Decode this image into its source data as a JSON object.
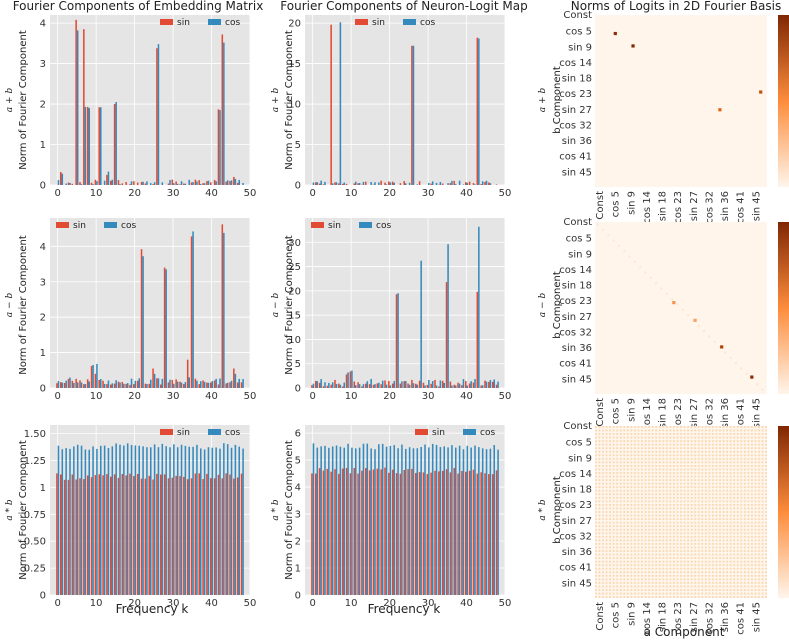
{
  "figure": {
    "col_titles": [
      "Fourier Components of Embedding Matrix",
      "Fourier Components of Neuron-Logit Map",
      "Norms of Logits in 2D Fourier Basis"
    ],
    "row_labels": [
      "a + b",
      "a − b",
      "a * b"
    ],
    "bar_ylabel": "Norm of Fourier Component",
    "bar_xlabel": "Frequency k",
    "heat_ylabel": "b Component",
    "heat_xlabel": "a Component",
    "legend": [
      "sin",
      "cos"
    ],
    "colors": {
      "sin": "#e24a33",
      "cos": "#348abd",
      "panel_bg": "#e5e5e5",
      "grid": "#ffffff",
      "heat_low": "#fff5eb",
      "heat_high": "#7f2704"
    }
  },
  "chart_data": [
    {
      "id": "emb_add",
      "type": "bar",
      "x_ticks": [
        0,
        10,
        20,
        30,
        40,
        50
      ],
      "xlim": [
        -2,
        50
      ],
      "ylim": [
        0,
        4.2
      ],
      "y_ticks": [
        0,
        1,
        2,
        3,
        4
      ],
      "legend_pos": "top-right",
      "base_sin": 0.05,
      "base_cos": 0.05,
      "peaks": [
        [
          1,
          0.32,
          0.28
        ],
        [
          5,
          4.08,
          3.82
        ],
        [
          7,
          3.85,
          1.93
        ],
        [
          8,
          1.93,
          1.9
        ],
        [
          11,
          1.92,
          1.92
        ],
        [
          13,
          0.25,
          0.33
        ],
        [
          15,
          2.0,
          2.05
        ],
        [
          26,
          3.38,
          3.48
        ],
        [
          42,
          1.87,
          1.85
        ],
        [
          43,
          3.72,
          3.52
        ],
        [
          46,
          0.2,
          0.15
        ]
      ]
    },
    {
      "id": "nlm_add",
      "type": "bar",
      "x_ticks": [
        0,
        10,
        20,
        30,
        40,
        50
      ],
      "xlim": [
        -2,
        50
      ],
      "ylim": [
        0,
        21
      ],
      "y_ticks": [
        0,
        5,
        10,
        15,
        20
      ],
      "legend_pos": "top-center",
      "base_sin": 0.12,
      "base_cos": 0.12,
      "peaks": [
        [
          5,
          19.8,
          0.2
        ],
        [
          7,
          0.2,
          20.1
        ],
        [
          26,
          17.2,
          17.2
        ],
        [
          43,
          18.2,
          18.1
        ]
      ]
    },
    {
      "id": "heat_add",
      "type": "heatmap",
      "x_ticks": [
        "Const",
        "cos 5",
        "sin 9",
        "cos 14",
        "sin 18",
        "cos 23",
        "sin 27",
        "cos 32",
        "sin 36",
        "cos 41",
        "sin 45"
      ],
      "y_ticks": [
        "Const",
        "cos 5",
        "sin 9",
        "cos 14",
        "sin 18",
        "cos 23",
        "sin 27",
        "cos 32",
        "sin 36",
        "cos 41",
        "sin 45"
      ],
      "n": 97,
      "diagonal": false,
      "cells": [
        [
          10,
          11,
          0.95
        ],
        [
          17,
          21,
          1.0
        ],
        [
          53,
          70,
          0.55
        ],
        [
          43,
          93,
          0.7
        ]
      ]
    },
    {
      "id": "emb_sub",
      "type": "bar",
      "x_ticks": [
        0,
        10,
        20,
        30,
        40,
        50
      ],
      "xlim": [
        -2,
        50
      ],
      "ylim": [
        0,
        4.8
      ],
      "y_ticks": [
        0,
        1,
        2,
        3,
        4
      ],
      "legend_pos": "top-left",
      "base_sin": 0.18,
      "base_cos": 0.2,
      "peaks": [
        [
          9,
          0.62,
          0.65
        ],
        [
          10,
          0.4,
          0.68
        ],
        [
          22,
          3.92,
          3.72
        ],
        [
          25,
          0.55,
          0.4
        ],
        [
          28,
          3.4,
          3.35
        ],
        [
          34,
          0.8,
          0.3
        ],
        [
          35,
          4.28,
          4.42
        ],
        [
          43,
          4.62,
          4.38
        ],
        [
          46,
          0.55,
          0.4
        ]
      ]
    },
    {
      "id": "nlm_sub",
      "type": "bar",
      "x_ticks": [
        0,
        10,
        20,
        30,
        40,
        50
      ],
      "xlim": [
        -2,
        50
      ],
      "ylim": [
        0,
        35
      ],
      "y_ticks": [
        0,
        5,
        10,
        15,
        20,
        25,
        30
      ],
      "legend_pos": "top-left",
      "base_sin": 1.0,
      "base_cos": 1.2,
      "peaks": [
        [
          9,
          2.8,
          3.2
        ],
        [
          10,
          3.4,
          3.6
        ],
        [
          22,
          19.3,
          19.5
        ],
        [
          28,
          1.5,
          26.2
        ],
        [
          35,
          21.8,
          29.6
        ],
        [
          43,
          19.8,
          33.2
        ]
      ]
    },
    {
      "id": "heat_sub",
      "type": "heatmap",
      "x_ticks": [
        "Const",
        "cos 5",
        "sin 9",
        "cos 14",
        "sin 18",
        "cos 23",
        "sin 27",
        "cos 32",
        "sin 36",
        "cos 41",
        "sin 45"
      ],
      "y_ticks": [
        "Const",
        "cos 5",
        "sin 9",
        "cos 14",
        "sin 18",
        "cos 23",
        "sin 27",
        "cos 32",
        "sin 36",
        "cos 41",
        "sin 45"
      ],
      "n": 97,
      "diagonal": true,
      "cells": [
        [
          45,
          44,
          0.35
        ],
        [
          55,
          56,
          0.3
        ],
        [
          70,
          71,
          0.8
        ],
        [
          87,
          88,
          0.95
        ]
      ]
    },
    {
      "id": "emb_mul",
      "type": "bar",
      "x_ticks": [
        0,
        10,
        20,
        30,
        40,
        50
      ],
      "xlim": [
        -2,
        50
      ],
      "ylim": [
        0,
        1.58
      ],
      "y_ticks": [
        0,
        0.25,
        0.5,
        0.75,
        1.0,
        1.25,
        1.5
      ],
      "legend_pos": "top-right",
      "base_sin": 1.1,
      "base_cos": 1.38,
      "peaks": []
    },
    {
      "id": "nlm_mul",
      "type": "bar",
      "x_ticks": [
        0,
        10,
        20,
        30,
        40,
        50
      ],
      "xlim": [
        -2,
        50
      ],
      "ylim": [
        0,
        6.3
      ],
      "y_ticks": [
        0,
        1,
        2,
        3,
        4,
        5,
        6
      ],
      "legend_pos": "top-right",
      "base_sin": 4.6,
      "base_cos": 5.5,
      "peaks": []
    },
    {
      "id": "heat_mul",
      "type": "heatmap",
      "x_ticks": [
        "Const",
        "cos 5",
        "sin 9",
        "cos 14",
        "sin 18",
        "cos 23",
        "sin 27",
        "cos 32",
        "sin 36",
        "cos 41",
        "sin 45"
      ],
      "y_ticks": [
        "Const",
        "cos 5",
        "sin 9",
        "cos 14",
        "sin 18",
        "cos 23",
        "sin 27",
        "cos 32",
        "sin 36",
        "cos 41",
        "sin 45"
      ],
      "n": 97,
      "diagonal": false,
      "dense": true,
      "cells": []
    }
  ]
}
